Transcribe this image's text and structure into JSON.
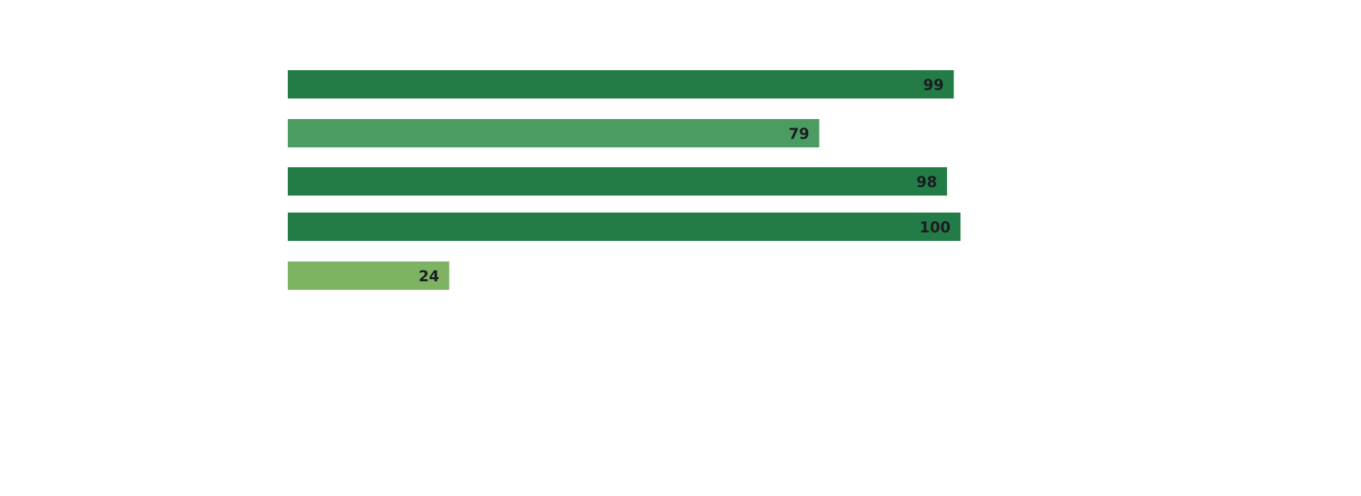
{
  "chart_data": {
    "type": "bar",
    "orientation": "horizontal",
    "title": "",
    "xlabel": "",
    "ylabel": "",
    "xlim": [
      0,
      100
    ],
    "grid": false,
    "values": [
      99,
      79,
      98,
      100,
      24
    ],
    "labels": [
      "99",
      "79",
      "98",
      "100",
      "24"
    ],
    "colors": [
      "#237b46",
      "#4b9c62",
      "#237b46",
      "#237b46",
      "#7eb363"
    ]
  }
}
